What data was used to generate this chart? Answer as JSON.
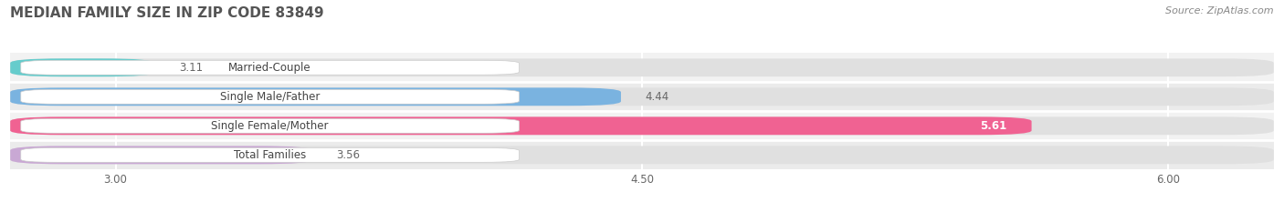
{
  "title": "MEDIAN FAMILY SIZE IN ZIP CODE 83849",
  "source": "Source: ZipAtlas.com",
  "categories": [
    "Married-Couple",
    "Single Male/Father",
    "Single Female/Mother",
    "Total Families"
  ],
  "values": [
    3.11,
    4.44,
    5.61,
    3.56
  ],
  "colors": [
    "#66cccc",
    "#7ab3e0",
    "#f06292",
    "#c9a8d4"
  ],
  "xlim": [
    2.7,
    6.3
  ],
  "xticks": [
    3.0,
    4.5,
    6.0
  ],
  "xtick_labels": [
    "3.00",
    "4.50",
    "6.00"
  ],
  "label_fontsize": 8.5,
  "value_fontsize": 8.5,
  "title_fontsize": 11,
  "background_color": "#ffffff",
  "bar_height": 0.62,
  "bar_row_bg_even": "#f2f2f2",
  "bar_row_bg_odd": "#ebebeb",
  "label_box_color": "#ffffff",
  "value_inside_color": "#ffffff",
  "value_outside_color": "#666666"
}
